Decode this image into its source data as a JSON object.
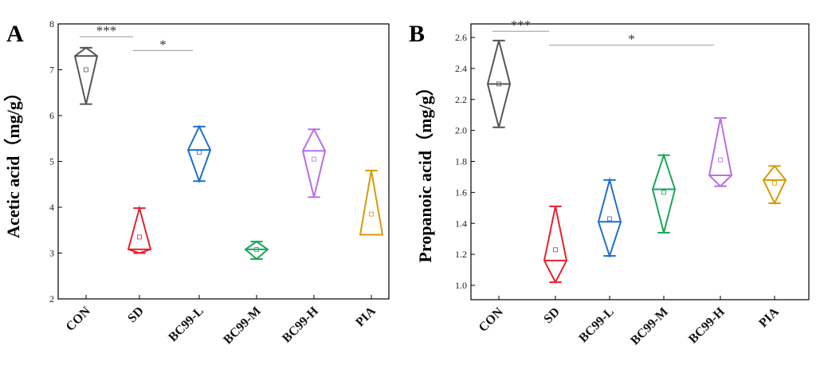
{
  "chart_data": [
    {
      "type": "diamond-box",
      "panel": "A",
      "ylabel": "Acetic acid（mg/g）",
      "ylim": [
        2,
        8
      ],
      "yticks": [
        "2",
        "3",
        "4",
        "5",
        "6",
        "7",
        "8"
      ],
      "categories": [
        "CON",
        "SD",
        "BC99-L",
        "BC99-M",
        "BC99-H",
        "PIA"
      ],
      "colors": [
        "#555555",
        "#e8202e",
        "#1f6fd1",
        "#1aa55c",
        "#b96ee6",
        "#d99a05"
      ],
      "groups": [
        {
          "min": 6.25,
          "max": 7.48,
          "median": 7.3,
          "mean": 7.0
        },
        {
          "min": 3.0,
          "max": 3.98,
          "median": 3.08,
          "mean": 3.35
        },
        {
          "min": 4.57,
          "max": 5.76,
          "median": 5.25,
          "mean": 5.2
        },
        {
          "min": 2.87,
          "max": 3.25,
          "median": 3.08,
          "mean": 3.08
        },
        {
          "min": 4.22,
          "max": 5.7,
          "median": 5.23,
          "mean": 5.05
        },
        {
          "min": 3.4,
          "max": 4.8,
          "median": 3.4,
          "mean": 3.85
        }
      ],
      "significance": [
        {
          "from": 0,
          "to": 1,
          "label": "***",
          "y": 7.72
        },
        {
          "from": 1,
          "to": 2,
          "label": "*",
          "y": 7.42
        }
      ]
    },
    {
      "type": "diamond-box",
      "panel": "B",
      "ylabel": "Propanoic acid（mg/g）",
      "ylim": [
        1.0,
        2.6
      ],
      "yticks": [
        "1.0",
        "1.2",
        "1.4",
        "1.6",
        "1.8",
        "2.0",
        "2.2",
        "2.4",
        "2.6"
      ],
      "categories": [
        "CON",
        "SD",
        "BC99-L",
        "BC99-M",
        "BC99-H",
        "PIA"
      ],
      "colors": [
        "#555555",
        "#e8202e",
        "#1f6fd1",
        "#1aa55c",
        "#b96ee6",
        "#d99a05"
      ],
      "groups": [
        {
          "min": 2.02,
          "max": 2.58,
          "median": 2.3,
          "mean": 2.3
        },
        {
          "min": 1.02,
          "max": 1.51,
          "median": 1.16,
          "mean": 1.23
        },
        {
          "min": 1.19,
          "max": 1.68,
          "median": 1.41,
          "mean": 1.43
        },
        {
          "min": 1.34,
          "max": 1.84,
          "median": 1.62,
          "mean": 1.6
        },
        {
          "min": 1.64,
          "max": 2.08,
          "median": 1.71,
          "mean": 1.81
        },
        {
          "min": 1.53,
          "max": 1.77,
          "median": 1.68,
          "mean": 1.66
        }
      ],
      "significance": [
        {
          "from": 0,
          "to": 1,
          "label": "***",
          "y": 2.64
        },
        {
          "from": 1,
          "to": 4,
          "label": "*",
          "y": 2.55
        }
      ]
    }
  ]
}
